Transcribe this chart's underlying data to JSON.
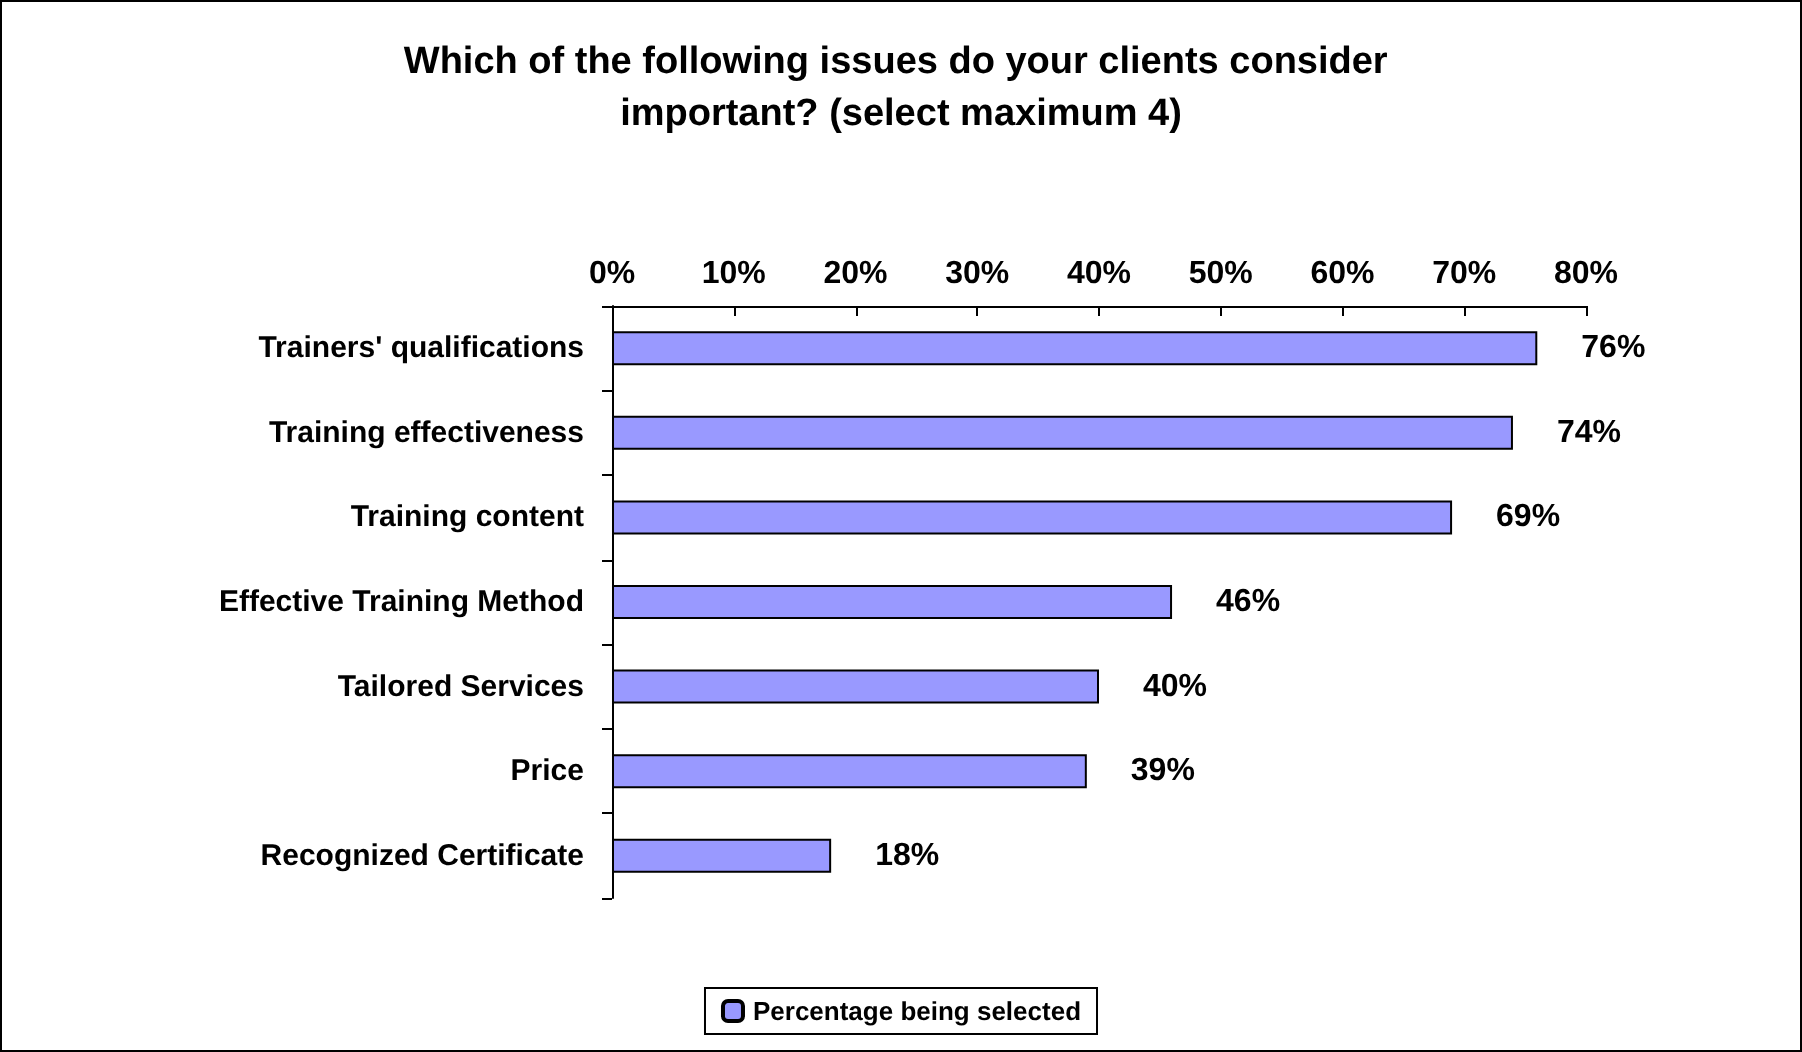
{
  "chart_data": {
    "type": "bar",
    "orientation": "horizontal",
    "title": "Which of the following issues do your clients consider important? (select maximum 4)",
    "categories": [
      "Trainers' qualifications",
      "Training effectiveness",
      "Training content",
      "Effective Training Method",
      "Tailored Services",
      "Price",
      "Recognized Certificate"
    ],
    "series": [
      {
        "name": "Percentage being selected",
        "color": "#9999ff",
        "values": [
          76,
          74,
          69,
          46,
          40,
          39,
          18
        ],
        "value_labels": [
          "76%",
          "74%",
          "69%",
          "46%",
          "40%",
          "39%",
          "18%"
        ]
      }
    ],
    "xlim": [
      0,
      80
    ],
    "xticks": [
      {
        "value": 0,
        "label": "0%"
      },
      {
        "value": 10,
        "label": "10%"
      },
      {
        "value": 20,
        "label": "20%"
      },
      {
        "value": 30,
        "label": "30%"
      },
      {
        "value": 40,
        "label": "40%"
      },
      {
        "value": 50,
        "label": "50%"
      },
      {
        "value": 60,
        "label": "60%"
      },
      {
        "value": 70,
        "label": "70%"
      },
      {
        "value": 80,
        "label": "80%"
      }
    ],
    "grid": false,
    "legend": "bottom"
  }
}
